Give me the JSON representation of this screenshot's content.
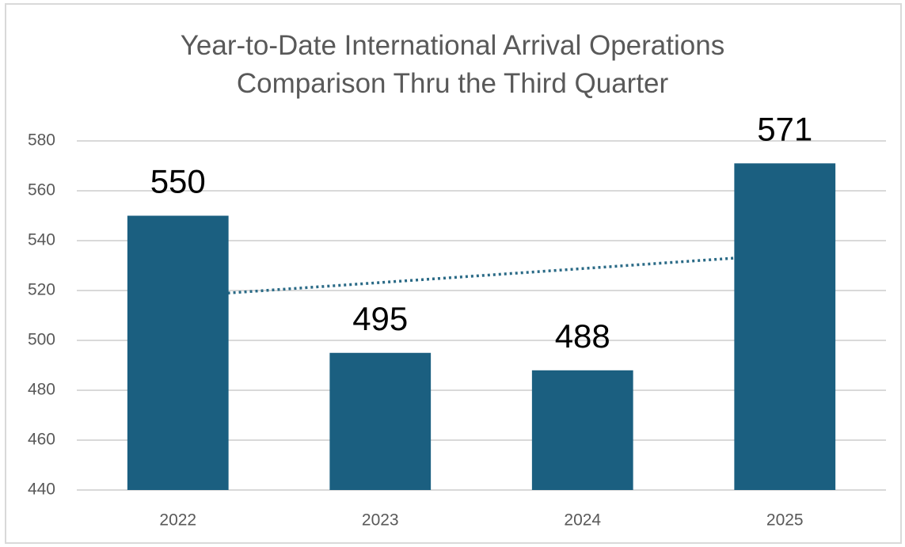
{
  "chart_data": {
    "type": "bar",
    "title": "Year-to-Date International Arrival Operations Comparison Thru the Third Quarter",
    "categories": [
      "2022",
      "2023",
      "2024",
      "2025"
    ],
    "values": [
      550,
      495,
      488,
      571
    ],
    "color": "#1b5f80",
    "ylim": [
      440,
      580
    ],
    "yticks": [
      440,
      460,
      480,
      500,
      520,
      540,
      560,
      580
    ],
    "grid": true,
    "trendline": "linear",
    "data_labels": true
  }
}
